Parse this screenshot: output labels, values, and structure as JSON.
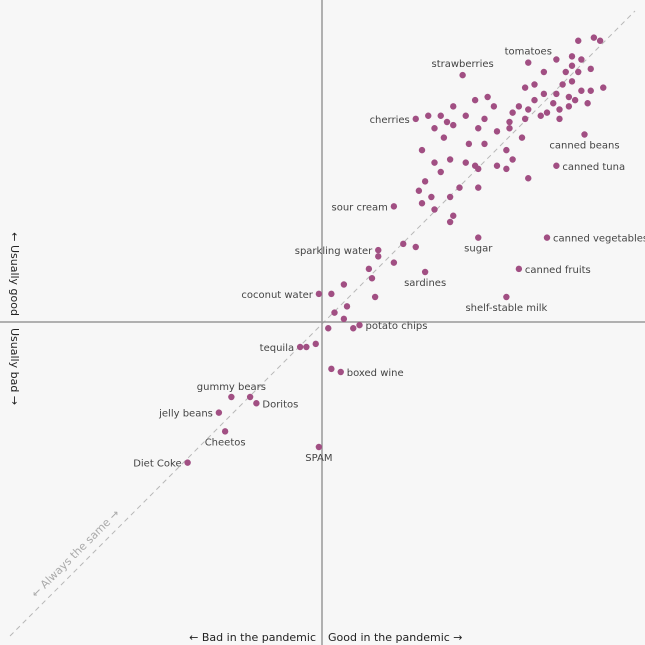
{
  "chart_data": {
    "type": "scatter",
    "title": "",
    "x_axis": {
      "neg_label": "← Bad in the pandemic",
      "pos_label": "Good in the pandemic →",
      "range": [
        -10,
        10
      ]
    },
    "y_axis": {
      "pos_label": "← Usually good",
      "neg_label": "Usually bad →",
      "range": [
        -10,
        10
      ]
    },
    "diagonal_label": "← Always the same →",
    "grid": false,
    "legend": "none",
    "colors": {
      "point": "#a14f83",
      "axis": "#999999",
      "diagonal": "#b8b8b8",
      "background": "#f7f7f7"
    },
    "labeled_points": [
      {
        "label": "tomatoes",
        "x": 6.6,
        "y": 8.3
      },
      {
        "label": "strawberries",
        "x": 4.5,
        "y": 7.9
      },
      {
        "label": "cherries",
        "x": 3.0,
        "y": 6.5
      },
      {
        "label": "canned beans",
        "x": 8.4,
        "y": 6.0
      },
      {
        "label": "canned tuna",
        "x": 7.5,
        "y": 5.0
      },
      {
        "label": "sour cream",
        "x": 2.3,
        "y": 3.7
      },
      {
        "label": "sparkling water",
        "x": 1.8,
        "y": 2.3
      },
      {
        "label": "sugar",
        "x": 5.0,
        "y": 2.7
      },
      {
        "label": "canned vegetables",
        "x": 7.2,
        "y": 2.7
      },
      {
        "label": "canned fruits",
        "x": 6.3,
        "y": 1.7
      },
      {
        "label": "sardines",
        "x": 3.3,
        "y": 1.6
      },
      {
        "label": "coconut water",
        "x": -0.1,
        "y": 0.9
      },
      {
        "label": "shelf-stable milk",
        "x": 5.9,
        "y": 0.8
      },
      {
        "label": "potato chips",
        "x": 1.2,
        "y": -0.1
      },
      {
        "label": "tequila",
        "x": -0.7,
        "y": -0.8
      },
      {
        "label": "boxed wine",
        "x": 0.6,
        "y": -1.6
      },
      {
        "label": "gummy bears",
        "x": -2.9,
        "y": -2.4
      },
      {
        "label": "Doritos",
        "x": -2.1,
        "y": -2.6
      },
      {
        "label": "jelly beans",
        "x": -3.3,
        "y": -2.9
      },
      {
        "label": "Cheetos",
        "x": -3.1,
        "y": -3.5
      },
      {
        "label": "Diet Coke",
        "x": -4.3,
        "y": -4.5
      },
      {
        "label": "SPAM",
        "x": -0.1,
        "y": -4.0
      }
    ],
    "other_points": [
      [
        8.2,
        9.0
      ],
      [
        8.7,
        9.1
      ],
      [
        8.9,
        9.0
      ],
      [
        8.0,
        8.5
      ],
      [
        7.5,
        8.4
      ],
      [
        8.3,
        8.4
      ],
      [
        8.0,
        8.2
      ],
      [
        8.6,
        8.1
      ],
      [
        7.1,
        8.0
      ],
      [
        7.8,
        8.0
      ],
      [
        8.2,
        8.0
      ],
      [
        6.8,
        7.6
      ],
      [
        7.7,
        7.6
      ],
      [
        8.0,
        7.7
      ],
      [
        7.5,
        7.3
      ],
      [
        7.9,
        7.2
      ],
      [
        8.3,
        7.4
      ],
      [
        8.6,
        7.4
      ],
      [
        9.0,
        7.5
      ],
      [
        8.1,
        7.1
      ],
      [
        8.5,
        7.0
      ],
      [
        6.5,
        7.5
      ],
      [
        7.1,
        7.3
      ],
      [
        6.8,
        7.1
      ],
      [
        7.4,
        7.0
      ],
      [
        7.9,
        6.9
      ],
      [
        6.3,
        6.9
      ],
      [
        7.6,
        6.8
      ],
      [
        7.2,
        6.7
      ],
      [
        6.1,
        6.7
      ],
      [
        6.6,
        6.8
      ],
      [
        7.0,
        6.6
      ],
      [
        7.6,
        6.5
      ],
      [
        6.5,
        6.5
      ],
      [
        6.0,
        6.4
      ],
      [
        5.3,
        7.2
      ],
      [
        4.9,
        7.1
      ],
      [
        5.5,
        6.9
      ],
      [
        4.2,
        6.9
      ],
      [
        4.6,
        6.6
      ],
      [
        5.2,
        6.5
      ],
      [
        4.2,
        6.3
      ],
      [
        4.0,
        6.4
      ],
      [
        3.8,
        6.6
      ],
      [
        3.4,
        6.6
      ],
      [
        3.6,
        6.2
      ],
      [
        3.9,
        5.9
      ],
      [
        5.0,
        6.2
      ],
      [
        5.6,
        6.1
      ],
      [
        6.0,
        6.2
      ],
      [
        6.4,
        5.9
      ],
      [
        4.7,
        5.7
      ],
      [
        5.2,
        5.7
      ],
      [
        5.9,
        5.5
      ],
      [
        3.2,
        5.5
      ],
      [
        3.6,
        5.1
      ],
      [
        4.1,
        5.2
      ],
      [
        4.6,
        5.1
      ],
      [
        4.9,
        5.0
      ],
      [
        5.6,
        5.0
      ],
      [
        6.1,
        5.2
      ],
      [
        3.8,
        4.8
      ],
      [
        5.0,
        4.9
      ],
      [
        5.9,
        4.9
      ],
      [
        3.3,
        4.5
      ],
      [
        4.4,
        4.3
      ],
      [
        5.0,
        4.3
      ],
      [
        6.6,
        4.6
      ],
      [
        3.1,
        4.2
      ],
      [
        3.5,
        4.0
      ],
      [
        4.1,
        4.0
      ],
      [
        3.2,
        3.8
      ],
      [
        3.6,
        3.6
      ],
      [
        4.2,
        3.4
      ],
      [
        4.1,
        3.2
      ],
      [
        2.6,
        2.5
      ],
      [
        3.0,
        2.4
      ],
      [
        1.8,
        2.1
      ],
      [
        2.3,
        1.9
      ],
      [
        1.5,
        1.7
      ],
      [
        1.6,
        1.4
      ],
      [
        0.7,
        1.2
      ],
      [
        0.3,
        0.9
      ],
      [
        1.7,
        0.8
      ],
      [
        0.8,
        0.5
      ],
      [
        0.4,
        0.3
      ],
      [
        0.7,
        0.1
      ],
      [
        0.2,
        -0.2
      ],
      [
        1.0,
        -0.2
      ],
      [
        -0.5,
        -0.8
      ],
      [
        -0.2,
        -0.7
      ],
      [
        0.3,
        -1.5
      ],
      [
        -2.3,
        -2.4
      ]
    ]
  }
}
